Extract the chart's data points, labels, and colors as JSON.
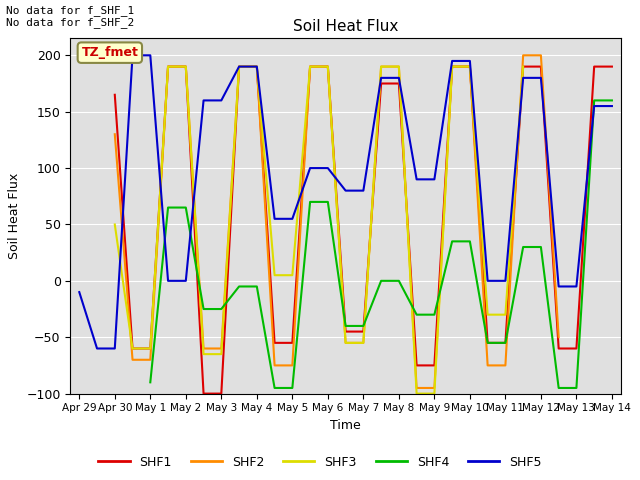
{
  "title": "Soil Heat Flux",
  "xlabel": "Time",
  "ylabel": "Soil Heat Flux",
  "ylim": [
    -100,
    215
  ],
  "yticks": [
    -100,
    -50,
    0,
    50,
    100,
    150,
    200
  ],
  "annotation_text": "No data for f_SHF_1\nNo data for f_SHF_2",
  "tz_label": "TZ_fmet",
  "bg_color": "#e0e0e0",
  "line_colors": {
    "SHF1": "#dd0000",
    "SHF2": "#ff8c00",
    "SHF3": "#dddd00",
    "SHF4": "#00bb00",
    "SHF5": "#0000cc"
  },
  "x_tick_positions": [
    0,
    2,
    4,
    6,
    8,
    10,
    12,
    14,
    16,
    18,
    20,
    22,
    24,
    26,
    28,
    30
  ],
  "x_tick_labels": [
    "Apr 29",
    "Apr 30",
    "May 1",
    "May 2",
    "May 3",
    "May 4",
    "May 5",
    "May 6",
    "May 7",
    "May 8",
    "May 9",
    "May 10",
    "May 11",
    "May 12",
    "May 13",
    "May 14"
  ],
  "SHF1": [
    null,
    null,
    165,
    -60,
    -60,
    190,
    190,
    -100,
    -100,
    190,
    190,
    -55,
    -55,
    190,
    190,
    -45,
    -45,
    175,
    175,
    -75,
    -75,
    190,
    190,
    -55,
    -55,
    190,
    190,
    -60,
    -60,
    190,
    190
  ],
  "SHF2": [
    null,
    null,
    130,
    -70,
    -70,
    190,
    190,
    -60,
    -60,
    190,
    190,
    -75,
    -75,
    190,
    190,
    -55,
    -55,
    190,
    190,
    -95,
    -95,
    190,
    190,
    -75,
    -75,
    200,
    200,
    -50,
    null,
    null,
    null
  ],
  "SHF3": [
    null,
    null,
    50,
    -60,
    -60,
    190,
    190,
    -65,
    -65,
    190,
    190,
    5,
    5,
    190,
    190,
    -55,
    -55,
    190,
    190,
    -100,
    -100,
    190,
    190,
    -30,
    -30,
    190,
    null,
    null,
    null,
    null,
    null
  ],
  "SHF4": [
    null,
    null,
    null,
    null,
    -90,
    65,
    65,
    -25,
    -25,
    -5,
    -5,
    -95,
    -95,
    70,
    70,
    -40,
    -40,
    0,
    0,
    -30,
    -30,
    35,
    35,
    -55,
    -55,
    30,
    30,
    -95,
    -95,
    160,
    160
  ],
  "SHF5": [
    -10,
    -60,
    -60,
    200,
    200,
    0,
    0,
    160,
    160,
    190,
    190,
    55,
    55,
    100,
    100,
    80,
    80,
    180,
    180,
    90,
    90,
    195,
    195,
    0,
    0,
    180,
    180,
    -5,
    -5,
    155,
    155
  ]
}
